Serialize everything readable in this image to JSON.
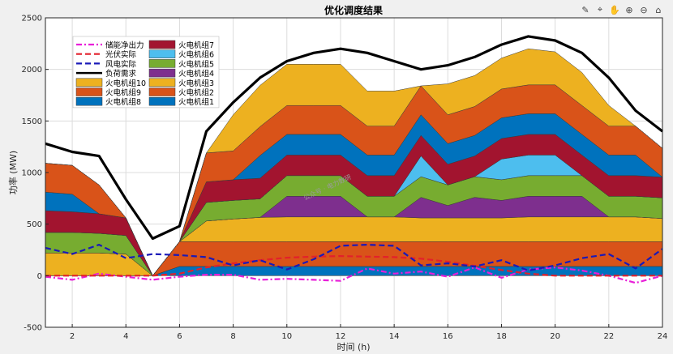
{
  "toolbar": {
    "icons": [
      "brush-icon",
      "datatip-icon",
      "pan-icon",
      "zoom-in-icon",
      "zoom-out-icon",
      "home-icon"
    ]
  },
  "watermark": "公众号 · 电力数研",
  "chart_data": {
    "type": "area",
    "title": "优化调度结果",
    "xlabel": "时间 (h)",
    "ylabel": "功率 (MW)",
    "xlim": [
      1,
      24
    ],
    "ylim": [
      -500,
      2500
    ],
    "xticks": [
      2,
      4,
      6,
      8,
      10,
      12,
      14,
      16,
      18,
      20,
      22,
      24
    ],
    "yticks": [
      -500,
      0,
      500,
      1000,
      1500,
      2000,
      2500
    ],
    "grid": true,
    "legend_position": "top-left",
    "x": [
      1,
      2,
      3,
      4,
      5,
      6,
      7,
      8,
      9,
      10,
      11,
      12,
      13,
      14,
      15,
      16,
      17,
      18,
      19,
      20,
      21,
      22,
      23,
      24
    ],
    "stacked_series": [
      {
        "name": "火电机组1",
        "color": "#0072BD",
        "values": [
          0,
          0,
          0,
          0,
          0,
          90,
          90,
          90,
          90,
          90,
          90,
          90,
          90,
          90,
          90,
          90,
          90,
          90,
          90,
          90,
          90,
          90,
          90,
          90
        ]
      },
      {
        "name": "火电机组2",
        "color": "#D95319",
        "values": [
          0,
          0,
          0,
          0,
          0,
          240,
          240,
          240,
          240,
          240,
          240,
          240,
          240,
          240,
          240,
          240,
          240,
          240,
          240,
          240,
          240,
          240,
          240,
          240
        ]
      },
      {
        "name": "火电机组3",
        "color": "#EDB120",
        "values": [
          220,
          220,
          220,
          210,
          0,
          0,
          200,
          220,
          235,
          240,
          240,
          240,
          240,
          240,
          230,
          230,
          230,
          230,
          240,
          240,
          240,
          240,
          240,
          225
        ]
      },
      {
        "name": "火电机组4",
        "color": "#7E2F8E",
        "values": [
          0,
          0,
          0,
          0,
          0,
          0,
          0,
          0,
          0,
          200,
          200,
          200,
          0,
          0,
          200,
          120,
          200,
          170,
          200,
          200,
          200,
          0,
          0,
          0
        ]
      },
      {
        "name": "火电机组5",
        "color": "#77AC30",
        "values": [
          200,
          200,
          190,
          180,
          0,
          0,
          180,
          180,
          180,
          200,
          200,
          200,
          200,
          200,
          200,
          200,
          200,
          200,
          200,
          200,
          200,
          200,
          200,
          200
        ]
      },
      {
        "name": "火电机组6",
        "color": "#4DBEEE",
        "values": [
          0,
          0,
          0,
          0,
          0,
          0,
          0,
          0,
          0,
          0,
          0,
          0,
          0,
          0,
          200,
          0,
          0,
          200,
          200,
          200,
          0,
          0,
          0,
          0
        ]
      },
      {
        "name": "火电机组7",
        "color": "#A2142F",
        "values": [
          210,
          200,
          190,
          170,
          0,
          0,
          200,
          200,
          200,
          200,
          200,
          200,
          200,
          200,
          200,
          200,
          200,
          200,
          200,
          200,
          200,
          200,
          200,
          200
        ]
      },
      {
        "name": "火电机组8",
        "color": "#0072BD",
        "values": [
          180,
          170,
          0,
          0,
          0,
          0,
          0,
          0,
          220,
          200,
          200,
          200,
          200,
          200,
          200,
          200,
          200,
          200,
          200,
          200,
          200,
          200,
          200,
          0
        ]
      },
      {
        "name": "火电机组9",
        "color": "#D95319",
        "values": [
          280,
          280,
          280,
          0,
          0,
          0,
          280,
          280,
          280,
          280,
          280,
          280,
          280,
          280,
          280,
          280,
          280,
          280,
          280,
          280,
          280,
          280,
          280,
          280
        ]
      },
      {
        "name": "火电机组10",
        "color": "#EDB120",
        "values": [
          0,
          0,
          0,
          0,
          0,
          0,
          0,
          350,
          400,
          400,
          400,
          400,
          340,
          340,
          0,
          300,
          300,
          300,
          350,
          320,
          320,
          200,
          0,
          0
        ]
      }
    ],
    "lines": [
      {
        "name": "储能净出力",
        "color": "#E81ED8",
        "style": "dashdot",
        "width": 2.2,
        "values": [
          -10,
          -40,
          20,
          -10,
          -40,
          -10,
          10,
          10,
          -40,
          -30,
          -40,
          -50,
          70,
          20,
          40,
          -10,
          80,
          -20,
          60,
          80,
          50,
          0,
          -70,
          0
        ]
      },
      {
        "name": "光伏实际",
        "color": "#E3202B",
        "style": "dashed",
        "width": 2.2,
        "values": [
          0,
          0,
          0,
          0,
          0,
          20,
          80,
          120,
          150,
          175,
          185,
          190,
          185,
          180,
          165,
          135,
          95,
          55,
          20,
          0,
          0,
          0,
          0,
          0
        ]
      },
      {
        "name": "风电实际",
        "color": "#1A1AB8",
        "style": "dashed",
        "width": 2.2,
        "values": [
          270,
          210,
          300,
          170,
          210,
          200,
          180,
          100,
          150,
          60,
          160,
          290,
          300,
          290,
          100,
          120,
          90,
          150,
          50,
          100,
          170,
          210,
          70,
          260
        ]
      },
      {
        "name": "负荷需求",
        "color": "#000000",
        "style": "solid",
        "width": 3.2,
        "values": [
          1280,
          1200,
          1160,
          740,
          360,
          480,
          1400,
          1680,
          1920,
          2080,
          2160,
          2200,
          2160,
          2080,
          2000,
          2040,
          2120,
          2240,
          2320,
          2280,
          2160,
          1920,
          1600,
          1400
        ]
      }
    ],
    "legend_columns": [
      [
        "储能净出力",
        "光伏实际",
        "风电实际",
        "负荷需求",
        "火电机组10",
        "火电机组9",
        "火电机组8"
      ],
      [
        "火电机组7",
        "火电机组6",
        "火电机组5",
        "火电机组4",
        "火电机组3",
        "火电机组2",
        "火电机组1"
      ]
    ]
  }
}
